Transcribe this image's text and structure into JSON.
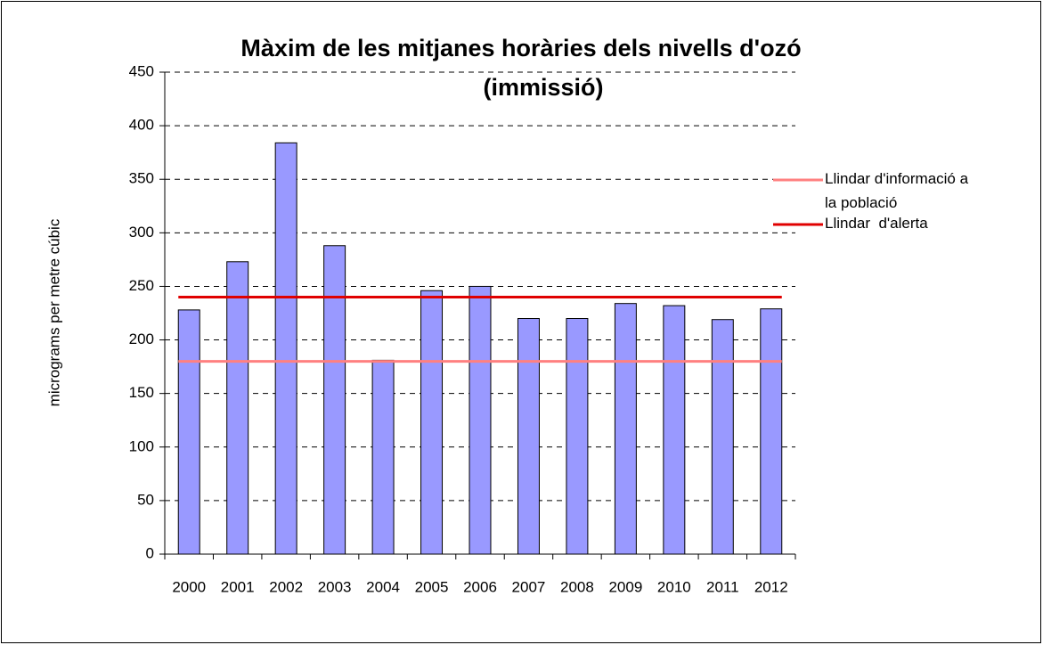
{
  "chart_data": {
    "type": "bar",
    "title": [
      "Màxim de les mitjanes horàries dels nivells d'ozó",
      "(immissió)"
    ],
    "y_label": "micrograms per metre cúbic",
    "categories": [
      "2000",
      "2001",
      "2002",
      "2003",
      "2004",
      "2005",
      "2006",
      "2007",
      "2008",
      "2009",
      "2010",
      "2011",
      "2012"
    ],
    "values": [
      228,
      273,
      384,
      288,
      181,
      246,
      250,
      220,
      220,
      234,
      232,
      219,
      229
    ],
    "color": "#9999ff",
    "reference_lines": [
      {
        "name": "Llindar d'informació a la població",
        "color": "#ff8080",
        "value": 180
      },
      {
        "name": "Llindar  d'alerta",
        "color": "#e00000",
        "value": 240
      }
    ],
    "ylim": [
      0,
      450
    ],
    "yticks": [
      0,
      50,
      100,
      150,
      200,
      250,
      300,
      350,
      400,
      450
    ],
    "grid": true,
    "legend": "right"
  }
}
